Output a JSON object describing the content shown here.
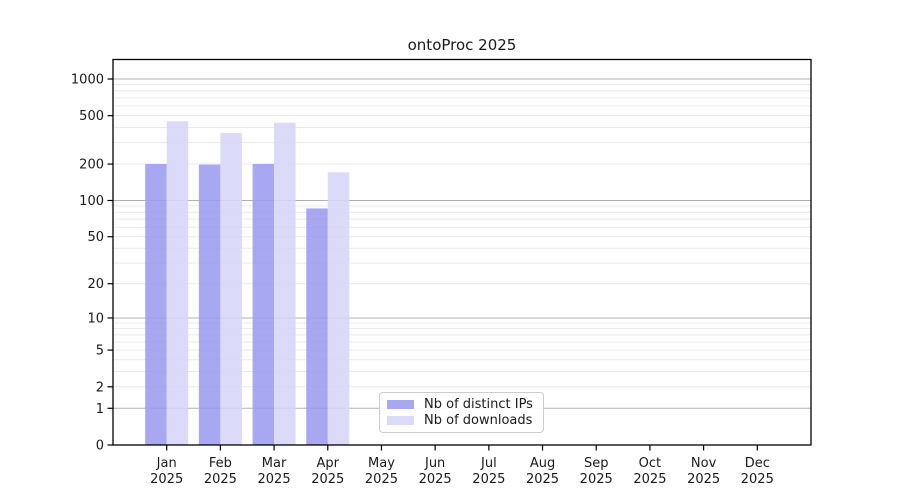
{
  "figure": {
    "title": "ontoProc 2025"
  },
  "legend": {
    "position": "lower-center-inside",
    "items": [
      {
        "label": "Nb of distinct IPs",
        "color": "#9a9af0"
      },
      {
        "label": "Nb of downloads",
        "color": "#d6d6f8"
      }
    ]
  },
  "chart_data": {
    "type": "bar",
    "title": "ontoProc 2025",
    "categories": [
      "Jan 2025",
      "Feb 2025",
      "Mar 2025",
      "Apr 2025",
      "May 2025",
      "Jun 2025",
      "Jul 2025",
      "Aug 2025",
      "Sep 2025",
      "Oct 2025",
      "Nov 2025",
      "Dec 2025"
    ],
    "series": [
      {
        "name": "Nb of distinct IPs",
        "color": "#9a9af0",
        "values": [
          200,
          198,
          200,
          86,
          null,
          null,
          null,
          null,
          null,
          null,
          null,
          null
        ]
      },
      {
        "name": "Nb of downloads",
        "color": "#d6d6f8",
        "values": [
          450,
          360,
          437,
          171,
          null,
          null,
          null,
          null,
          null,
          null,
          null,
          null
        ]
      }
    ],
    "bar_alpha": 0.87,
    "xlabel": "",
    "ylabel": "",
    "yscale": "log10(value+1)",
    "ylim": [
      0,
      1435
    ],
    "yticks": [
      0,
      1,
      2,
      5,
      10,
      20,
      50,
      100,
      200,
      500,
      1000
    ],
    "grid": {
      "major_at": [
        1,
        10,
        100,
        1000
      ],
      "minor_multiples": [
        2,
        3,
        4,
        5,
        6,
        7,
        8,
        9
      ],
      "major_color": "#b0b0b0",
      "minor_color": "#e9e9e9"
    },
    "frame_color": "#000000",
    "legend_position": "lower center"
  }
}
